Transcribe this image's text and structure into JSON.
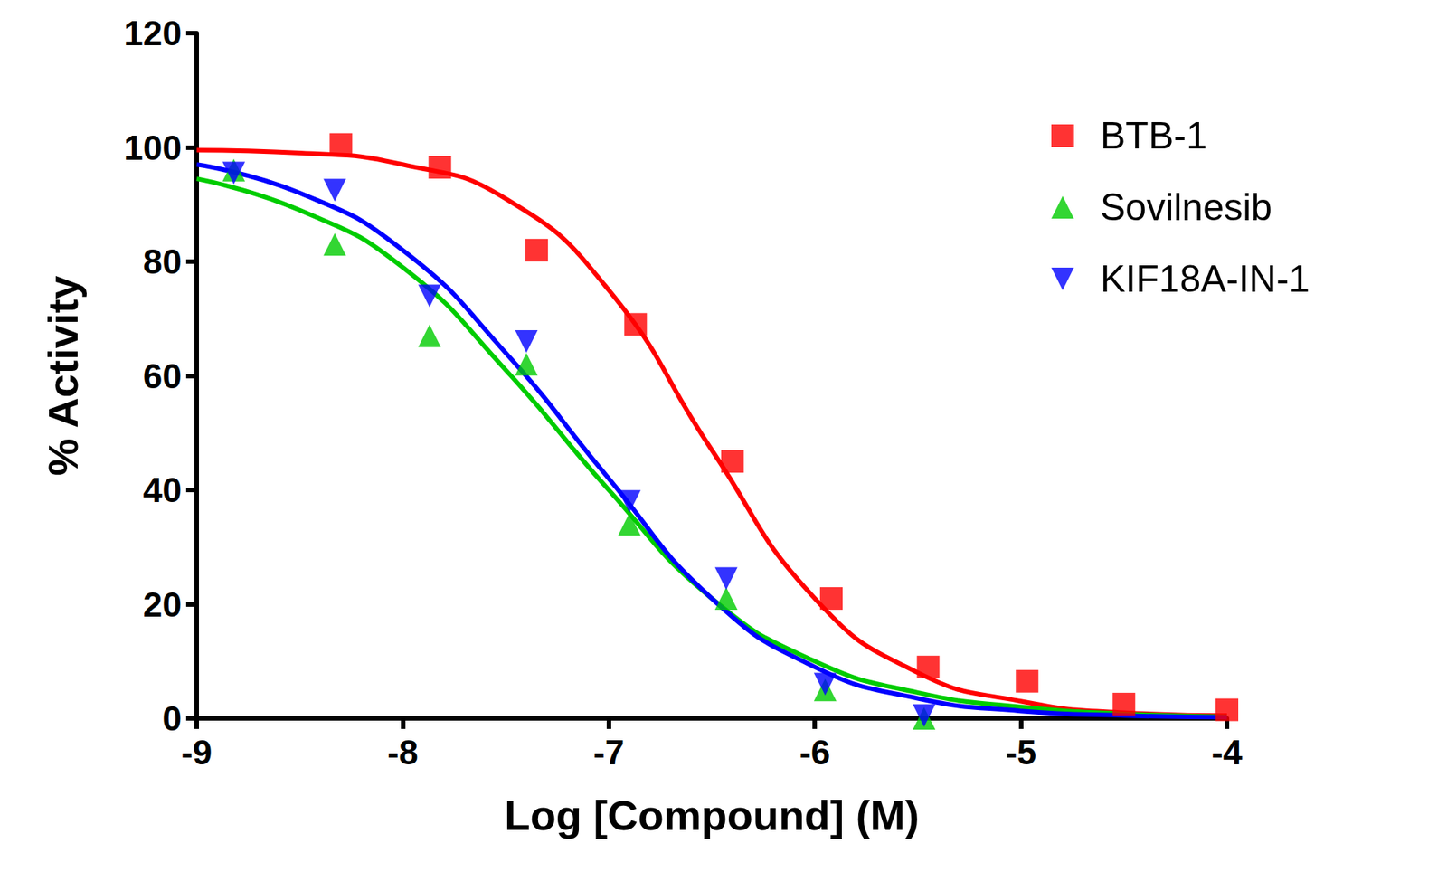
{
  "chart_data": {
    "type": "scatter",
    "x_label": "Log [Compound] (M)",
    "y_label": "% Activity",
    "xlim": [
      -9,
      -4
    ],
    "xticks": [
      -9,
      -8,
      -7,
      -6,
      -5,
      -4
    ],
    "ylim": [
      0,
      120
    ],
    "yticks": [
      0,
      20,
      40,
      60,
      80,
      100,
      120
    ],
    "grid": false,
    "legend": "top-right",
    "series": [
      {
        "name": "BTB-1",
        "color": "#ff0000",
        "marker": "square",
        "x": [
          -8.3,
          -7.82,
          -7.35,
          -6.87,
          -6.4,
          -5.92,
          -5.45,
          -4.97,
          -4.5,
          -4.0
        ],
        "values": [
          100.5,
          96.5,
          82,
          69,
          45,
          21,
          9,
          6.5,
          2.5,
          1.5
        ],
        "fit_x": [
          -9,
          -8.5,
          -8,
          -7.5,
          -7,
          -6.5,
          -6,
          -5.5,
          -5,
          -4.5,
          -4
        ],
        "fit_values": [
          99.5,
          99,
          97,
          91,
          75,
          47,
          21,
          8,
          3,
          1,
          0.5
        ]
      },
      {
        "name": "Sovilnesib",
        "color": "#00cc00",
        "marker": "triangle",
        "x": [
          -8.82,
          -8.33,
          -7.87,
          -7.4,
          -6.9,
          -6.43,
          -5.95,
          -5.47
        ],
        "values": [
          96,
          83,
          67,
          62,
          34,
          21,
          5,
          0
        ],
        "fit_x": [
          -9,
          -8.5,
          -8,
          -7.5,
          -7,
          -6.5,
          -6,
          -5.5,
          -5,
          -4.5,
          -4
        ],
        "fit_values": [
          94.5,
          89,
          79,
          61,
          40,
          21,
          10,
          4.5,
          2,
          0.8,
          0.3
        ]
      },
      {
        "name": "KIF18A-IN-1",
        "color": "#0000ff",
        "marker": "triangle-down",
        "x": [
          -8.82,
          -8.33,
          -7.87,
          -7.4,
          -6.9,
          -6.43,
          -5.95,
          -5.47
        ],
        "values": [
          95.5,
          92.5,
          74,
          66,
          38,
          24.5,
          6,
          0.5
        ],
        "fit_x": [
          -9,
          -8.5,
          -8,
          -7.5,
          -7,
          -6.5,
          -6,
          -5.5,
          -5,
          -4.5,
          -4
        ],
        "fit_values": [
          97,
          92,
          82,
          64,
          42,
          21,
          9,
          3.5,
          1.3,
          0.5,
          0.2
        ]
      }
    ]
  }
}
